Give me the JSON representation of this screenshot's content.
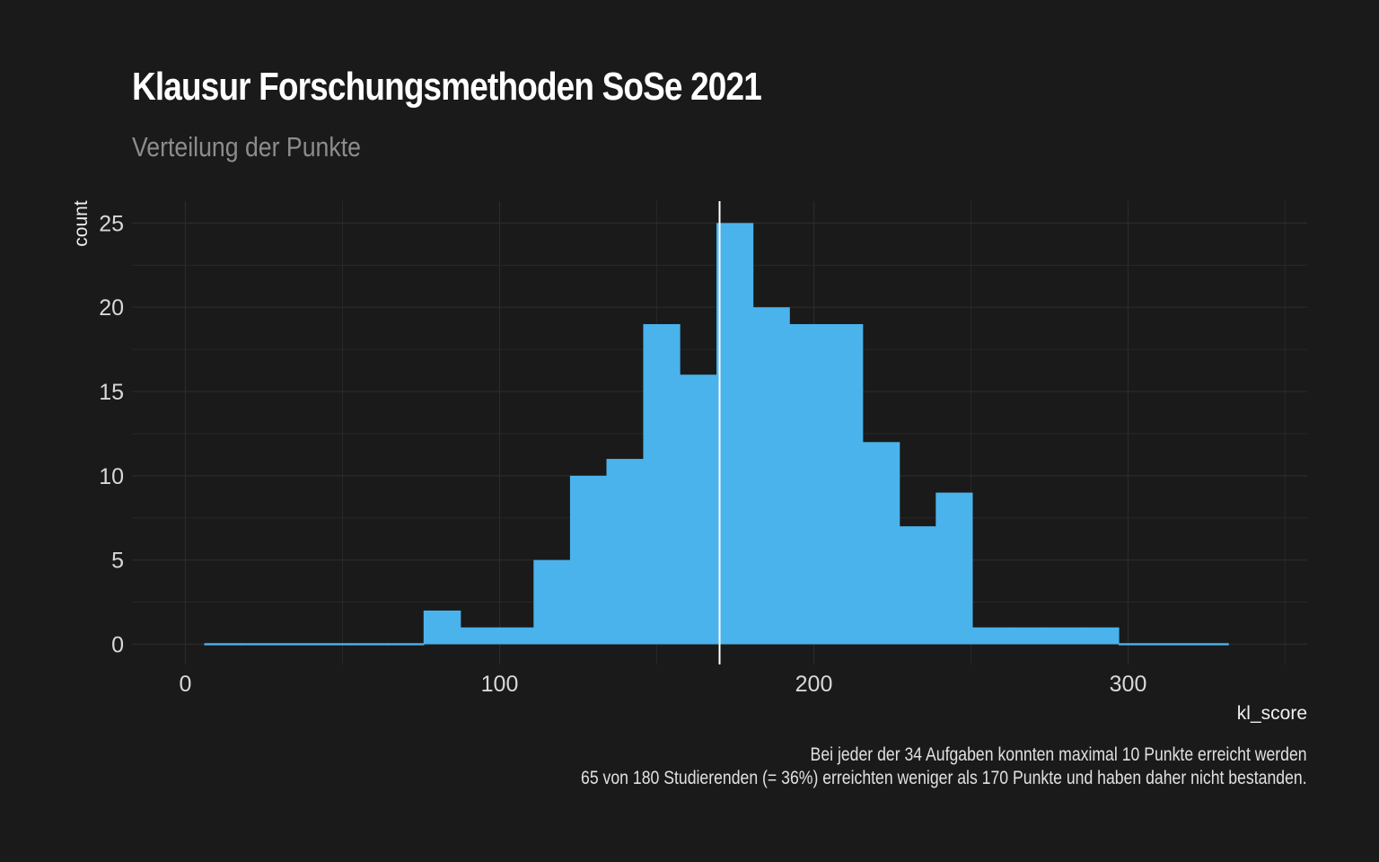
{
  "chart_data": {
    "type": "histogram",
    "title": "Klausur Forschungsmethoden SoSe 2021",
    "subtitle": "Verteilung der Punkte",
    "xlabel": "kl_score",
    "ylabel": "count",
    "caption_lines": [
      "Bei jeder der 34 Aufgaben konnten maximal 10 Punkte erreicht werden",
      "65 von 180 Studierenden (= 36%) erreichten weniger als 170 Punkte und haben daher nicht bestanden."
    ],
    "xlim": [
      -17,
      357
    ],
    "ylim": [
      -1.2,
      26.3
    ],
    "x_ticks": [
      0,
      100,
      200,
      300
    ],
    "x_tick_labels": [
      "0",
      "100",
      "200",
      "300"
    ],
    "y_ticks": [
      0,
      5,
      10,
      15,
      20,
      25
    ],
    "y_tick_labels": [
      "0",
      "5",
      "10",
      "15",
      "20",
      "25"
    ],
    "bin_edges": [
      6,
      17.6,
      29.3,
      40.9,
      52.6,
      64.2,
      75.8,
      87.5,
      99.1,
      110.8,
      122.4,
      134,
      145.7,
      157.3,
      169,
      180.6,
      192.2,
      203.9,
      215.5,
      227.2,
      238.8,
      250.4,
      262.1,
      273.7,
      285.4,
      297,
      308.6,
      320.3,
      331.9
    ],
    "counts": [
      0,
      0,
      0,
      0,
      0,
      0,
      2,
      1,
      1,
      5,
      10,
      11,
      19,
      16,
      25,
      20,
      19,
      19,
      12,
      7,
      9,
      1,
      1,
      1,
      1,
      0,
      0,
      0
    ],
    "reference_line_x": 170,
    "bar_color": "#4ab3ec",
    "reference_line_color": "#ffffff",
    "grid": true,
    "grid_color": "#2b2b2b",
    "background_color": "#1a1a1a"
  }
}
